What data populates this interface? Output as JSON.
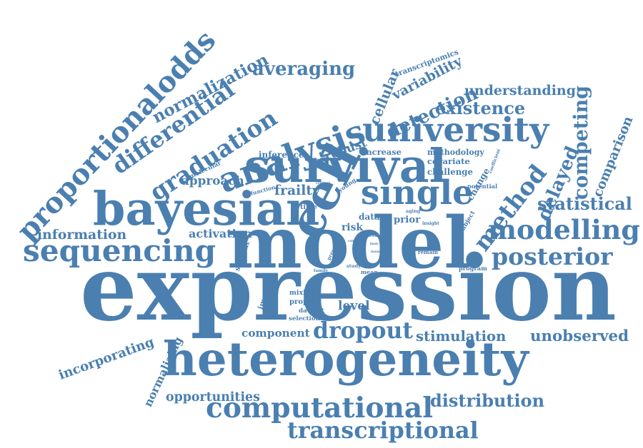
{
  "accent_color": "#4a7fb0",
  "words": [
    "expression",
    "model",
    "heterogeneity",
    "bayesian",
    "survival",
    "single",
    "cell",
    "university",
    "analysis",
    "graduation",
    "proportionalodds",
    "sequencing",
    "computational",
    "transcriptional",
    "modelling",
    "posterior",
    "method",
    "delayed",
    "competing",
    "statistical",
    "dropout",
    "unobserved",
    "distribution",
    "differential",
    "normalization",
    "averaging",
    "detection",
    "variability",
    "cellular",
    "existence",
    "understanding",
    "comparison",
    "stimulation",
    "opportunities",
    "incorporating",
    "normalizing",
    "information",
    "approach",
    "frailty",
    "activation",
    "component",
    "level",
    "robust",
    "inference",
    "increase",
    "methodology",
    "covariate",
    "challenge",
    "change",
    "coefficient",
    "transcriptomics",
    "time",
    "data",
    "risk",
    "prior",
    "aging",
    "insight",
    "subject",
    "potential",
    "molecular",
    "function",
    "critical",
    "young",
    "student",
    "present",
    "immune",
    "mixing",
    "proper",
    "dataset",
    "selection",
    "family",
    "study",
    "mean",
    "program",
    "remain",
    "basic",
    "issue",
    "core",
    "need"
  ]
}
